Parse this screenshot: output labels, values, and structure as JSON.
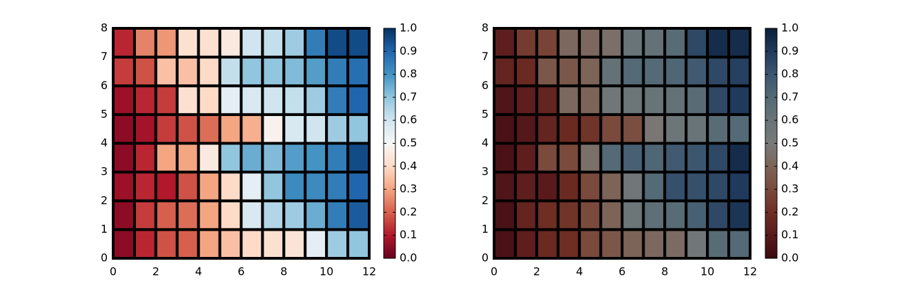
{
  "chart_data": [
    {
      "type": "heatmap",
      "colormap": [
        "#67001f",
        "#b2182b",
        "#d6604d",
        "#f4a582",
        "#fddbc7",
        "#f7f7f7",
        "#d1e5f0",
        "#92c5de",
        "#4393c3",
        "#2166ac",
        "#053061"
      ],
      "values": [
        [
          0.05,
          0.12,
          0.18,
          0.2,
          0.3,
          0.35,
          0.4,
          0.42,
          0.43,
          0.55,
          0.68,
          0.7
        ],
        [
          0.05,
          0.15,
          0.2,
          0.22,
          0.3,
          0.4,
          0.58,
          0.65,
          0.68,
          0.75,
          0.85,
          0.92
        ],
        [
          0.07,
          0.12,
          0.1,
          0.18,
          0.3,
          0.4,
          0.55,
          0.7,
          0.82,
          0.82,
          0.85,
          0.9
        ],
        [
          0.05,
          0.12,
          0.3,
          0.3,
          0.45,
          0.7,
          0.75,
          0.72,
          0.78,
          0.8,
          0.85,
          0.95
        ],
        [
          0.05,
          0.08,
          0.15,
          0.18,
          0.22,
          0.3,
          0.32,
          0.48,
          0.58,
          0.6,
          0.68,
          0.7
        ],
        [
          0.07,
          0.12,
          0.15,
          0.42,
          0.4,
          0.55,
          0.58,
          0.6,
          0.62,
          0.68,
          0.85,
          0.9
        ],
        [
          0.15,
          0.18,
          0.35,
          0.35,
          0.4,
          0.62,
          0.7,
          0.7,
          0.72,
          0.78,
          0.85,
          0.88
        ],
        [
          0.12,
          0.25,
          0.28,
          0.42,
          0.42,
          0.45,
          0.6,
          0.62,
          0.68,
          0.85,
          0.95,
          0.95
        ]
      ],
      "xlim": [
        0,
        12
      ],
      "xticks": [
        0,
        2,
        4,
        6,
        8,
        10,
        12
      ],
      "ylim": [
        0,
        8
      ],
      "yticks": [
        0,
        1,
        2,
        3,
        4,
        5,
        6,
        7,
        8
      ],
      "clim": [
        0,
        1
      ],
      "cticks": [
        {
          "value": 0,
          "label": "0.0"
        },
        {
          "value": 0.1,
          "label": "0.1"
        },
        {
          "value": 0.2,
          "label": "0.2"
        },
        {
          "value": 0.3,
          "label": "0.3"
        },
        {
          "value": 0.4,
          "label": "0.4"
        },
        {
          "value": 0.5,
          "label": "0.5"
        },
        {
          "value": 0.6,
          "label": "0.6"
        },
        {
          "value": 0.7,
          "label": "0.7"
        },
        {
          "value": 0.8,
          "label": "0.8"
        },
        {
          "value": 0.9,
          "label": "0.9"
        },
        {
          "value": 1,
          "label": "1.0"
        }
      ]
    },
    {
      "type": "heatmap",
      "colormap": [
        "#3a0a10",
        "#5a1a1c",
        "#6e2e24",
        "#7a4a3c",
        "#7c6458",
        "#7a7a7a",
        "#687478",
        "#546a76",
        "#3c5670",
        "#1f3a5c",
        "#0a1f3a"
      ],
      "values": [
        [
          0.05,
          0.12,
          0.18,
          0.2,
          0.3,
          0.35,
          0.4,
          0.42,
          0.43,
          0.55,
          0.68,
          0.7
        ],
        [
          0.05,
          0.15,
          0.2,
          0.22,
          0.3,
          0.4,
          0.58,
          0.65,
          0.68,
          0.75,
          0.85,
          0.92
        ],
        [
          0.07,
          0.12,
          0.1,
          0.18,
          0.3,
          0.4,
          0.55,
          0.7,
          0.82,
          0.82,
          0.85,
          0.9
        ],
        [
          0.05,
          0.12,
          0.3,
          0.3,
          0.45,
          0.7,
          0.75,
          0.72,
          0.78,
          0.8,
          0.85,
          0.95
        ],
        [
          0.05,
          0.08,
          0.15,
          0.18,
          0.22,
          0.3,
          0.32,
          0.48,
          0.58,
          0.6,
          0.68,
          0.7
        ],
        [
          0.07,
          0.12,
          0.15,
          0.42,
          0.4,
          0.55,
          0.58,
          0.6,
          0.62,
          0.68,
          0.85,
          0.9
        ],
        [
          0.15,
          0.18,
          0.35,
          0.35,
          0.4,
          0.62,
          0.7,
          0.7,
          0.72,
          0.78,
          0.85,
          0.88
        ],
        [
          0.12,
          0.25,
          0.28,
          0.42,
          0.42,
          0.45,
          0.6,
          0.62,
          0.68,
          0.85,
          0.95,
          0.95
        ]
      ],
      "xlim": [
        0,
        12
      ],
      "xticks": [
        0,
        2,
        4,
        6,
        8,
        10,
        12
      ],
      "ylim": [
        0,
        8
      ],
      "yticks": [
        0,
        1,
        2,
        3,
        4,
        5,
        6,
        7,
        8
      ],
      "clim": [
        0,
        1
      ],
      "cticks": [
        {
          "value": 0,
          "label": "0.0"
        },
        {
          "value": 0.1,
          "label": "0.1"
        },
        {
          "value": 0.2,
          "label": "0.2"
        },
        {
          "value": 0.3,
          "label": "0.3"
        },
        {
          "value": 0.4,
          "label": "0.4"
        },
        {
          "value": 0.5,
          "label": "0.5"
        },
        {
          "value": 0.6,
          "label": "0.6"
        },
        {
          "value": 0.7,
          "label": "0.7"
        },
        {
          "value": 0.8,
          "label": "0.8"
        },
        {
          "value": 0.9,
          "label": "0.9"
        },
        {
          "value": 1,
          "label": "1.0"
        }
      ]
    }
  ]
}
